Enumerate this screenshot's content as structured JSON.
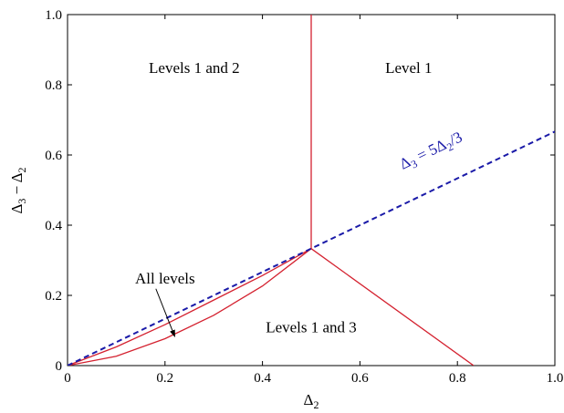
{
  "chart_data": {
    "type": "line",
    "xlabel_main": "Δ",
    "xlabel_sub": "2",
    "ylabel_main_1": "Δ",
    "ylabel_sub_1": "3",
    "ylabel_mid": " − Δ",
    "ylabel_sub_2": "2",
    "xlim": [
      0,
      1.0
    ],
    "ylim": [
      0,
      1.0
    ],
    "x_ticks": [
      0,
      0.2,
      0.4,
      0.6,
      0.8,
      1.0
    ],
    "y_ticks": [
      0,
      0.2,
      0.4,
      0.6,
      0.8,
      1.0
    ],
    "x_tick_labels": [
      "0",
      "0.2",
      "0.4",
      "0.6",
      "0.8",
      "1.0"
    ],
    "y_tick_labels": [
      "0",
      "0.2",
      "0.4",
      "0.6",
      "0.8",
      "1.0"
    ],
    "grid": false,
    "colors": {
      "boundary": "#d4212f",
      "dashed": "#1a1aa8"
    },
    "dashed_line": {
      "label_parts": [
        "Δ",
        "3",
        " = 5Δ",
        "2",
        "/3"
      ],
      "x": [
        0,
        1.0
      ],
      "y": [
        0,
        0.6667
      ]
    },
    "boundaries": [
      {
        "x": [
          0.5,
          0.5
        ],
        "y": [
          0.3333,
          1.0
        ]
      },
      {
        "x": [
          0.5,
          0.8333
        ],
        "y": [
          0.3333,
          0
        ]
      },
      {
        "x": [
          0,
          0.1,
          0.2,
          0.3,
          0.4,
          0.5
        ],
        "y": [
          0,
          0.0533,
          0.1167,
          0.1867,
          0.2567,
          0.3333
        ]
      },
      {
        "x": [
          0,
          0.1,
          0.2,
          0.3,
          0.4,
          0.5
        ],
        "y": [
          0,
          0.0267,
          0.0767,
          0.1433,
          0.2267,
          0.3333
        ]
      }
    ],
    "annotations": {
      "region_12": {
        "text": "Levels 1 and 2",
        "x": 0.26,
        "y": 0.85
      },
      "region_1": {
        "text": "Level 1",
        "x": 0.7,
        "y": 0.85
      },
      "region_13": {
        "text": "Levels 1 and 3",
        "x": 0.5,
        "y": 0.11
      },
      "all_levels": {
        "text": "All levels",
        "x": 0.2,
        "y": 0.25,
        "arrow_to_x": 0.22,
        "arrow_to_y": 0.083
      },
      "dashed_label": {
        "x": 0.75,
        "y": 0.6
      }
    }
  }
}
